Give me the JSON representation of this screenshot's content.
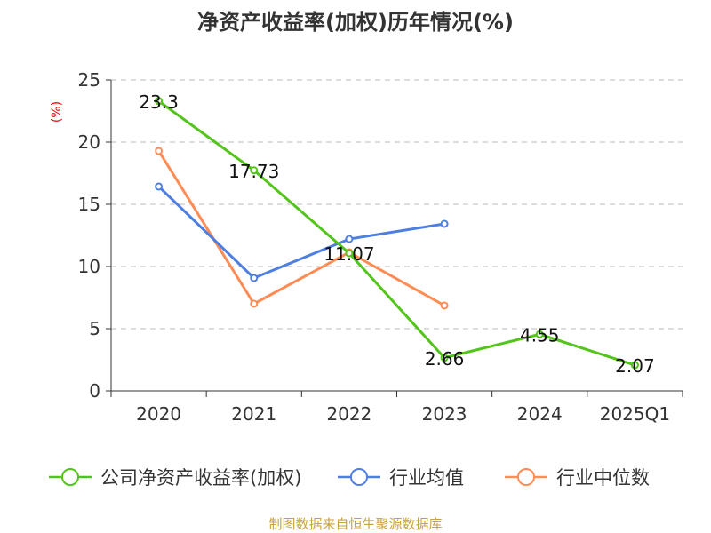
{
  "chart_data": {
    "type": "line",
    "title": "净资产收益率(加权)历年情况(%)",
    "ylabel": "(%)",
    "xlabel": "",
    "categories": [
      "2020",
      "2021",
      "2022",
      "2023",
      "2024",
      "2025Q1"
    ],
    "ylim": [
      0,
      25
    ],
    "yticks": [
      "0",
      "5",
      "10",
      "15",
      "20",
      "25"
    ],
    "grid": true,
    "legend_position": "bottom",
    "series": [
      {
        "name": "公司净资产收益率(加权)",
        "color": "#52c41a",
        "values": [
          23.3,
          17.73,
          11.07,
          2.66,
          4.55,
          2.07
        ],
        "labels": [
          "23.3",
          "17.73",
          "11.07",
          "2.66",
          "4.55",
          "2.07"
        ]
      },
      {
        "name": "行业均值",
        "color": "#4e7fe0",
        "values": [
          16.43,
          9.07,
          12.21,
          13.43,
          null,
          null
        ]
      },
      {
        "name": "行业中位数",
        "color": "#ff8c55",
        "values": [
          19.29,
          7.0,
          11.14,
          6.86,
          null,
          null
        ]
      }
    ],
    "source": "制图数据来自恒生聚源数据库"
  }
}
